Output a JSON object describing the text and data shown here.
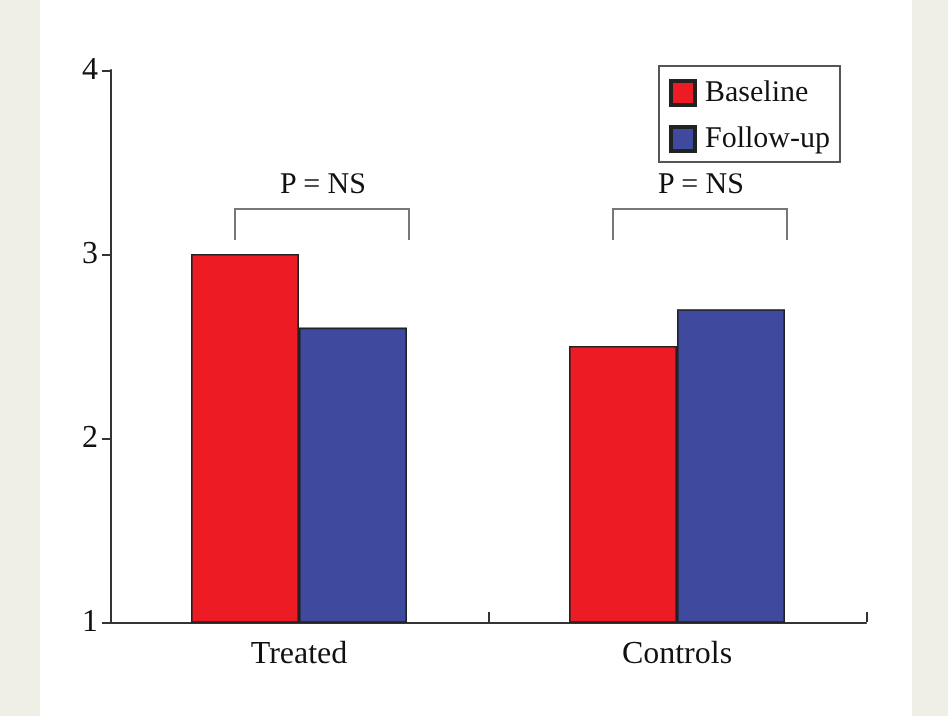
{
  "chart_data": {
    "type": "bar",
    "categories": [
      "Treated",
      "Controls"
    ],
    "series": [
      {
        "name": "Baseline",
        "color": "#ed1c24",
        "values": [
          3.0,
          2.5
        ]
      },
      {
        "name": "Follow-up",
        "color": "#3f4a9e",
        "values": [
          2.6,
          2.7
        ]
      }
    ],
    "ylim": [
      1,
      4
    ],
    "yticks": [
      1,
      2,
      3,
      4
    ],
    "grid": false,
    "legend": "top right",
    "annotations": [
      "P = NS",
      "P = NS"
    ]
  }
}
